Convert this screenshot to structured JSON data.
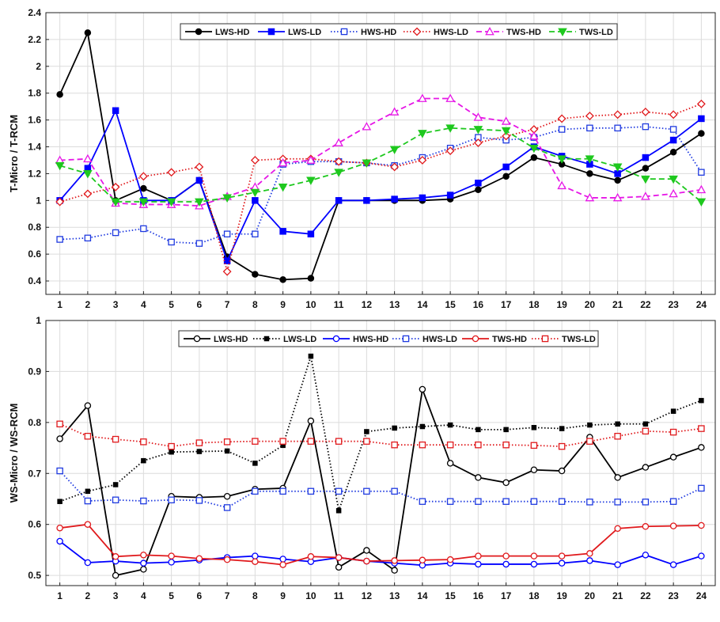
{
  "chart_data": [
    {
      "type": "line",
      "ylabel": "T-Micro / T-RCM",
      "xlabel": "",
      "title": "",
      "ylim": [
        0.3,
        2.4
      ],
      "yticks": [
        0.4,
        0.6,
        0.8,
        1,
        1.2,
        1.4,
        1.6,
        1.8,
        2,
        2.2,
        2.4
      ],
      "ytick_labels": [
        "0.4",
        "0.6",
        "0.8",
        "1",
        "1.2",
        "1.4",
        "1.6",
        "1.8",
        "2",
        "2.2",
        "2.4"
      ],
      "x": [
        1,
        2,
        3,
        4,
        5,
        6,
        7,
        8,
        9,
        10,
        11,
        12,
        13,
        14,
        15,
        16,
        17,
        18,
        19,
        20,
        21,
        22,
        23,
        24
      ],
      "xtick_labels": [
        "1",
        "2",
        "3",
        "4",
        "5",
        "6",
        "7",
        "8",
        "9",
        "10",
        "11",
        "12",
        "13",
        "14",
        "15",
        "16",
        "17",
        "18",
        "19",
        "20",
        "21",
        "22",
        "23",
        "24"
      ],
      "grid": true,
      "legend_position": "top-center",
      "series": [
        {
          "name": "LWS-HD",
          "color": "#000000",
          "dash": "solid",
          "marker": "circle-filled",
          "values": [
            1.79,
            2.25,
            1.0,
            1.09,
            1.0,
            1.15,
            0.58,
            0.45,
            0.41,
            0.42,
            1.0,
            1.0,
            1.0,
            1.0,
            1.01,
            1.08,
            1.18,
            1.32,
            1.27,
            1.2,
            1.15,
            1.24,
            1.36,
            1.5
          ]
        },
        {
          "name": "LWS-LD",
          "color": "#0000ff",
          "dash": "solid",
          "marker": "square-filled",
          "values": [
            1.0,
            1.24,
            1.67,
            1.0,
            1.0,
            1.15,
            0.55,
            1.0,
            0.77,
            0.75,
            1.0,
            1.0,
            1.01,
            1.02,
            1.04,
            1.13,
            1.25,
            1.4,
            1.33,
            1.27,
            1.2,
            1.32,
            1.45,
            1.61
          ]
        },
        {
          "name": "HWS-HD",
          "color": "#1f3ae0",
          "dash": "dotted",
          "marker": "square-open",
          "values": [
            0.71,
            0.72,
            0.76,
            0.79,
            0.69,
            0.68,
            0.75,
            0.75,
            1.27,
            1.29,
            1.29,
            1.28,
            1.26,
            1.32,
            1.39,
            1.47,
            1.45,
            1.47,
            1.53,
            1.54,
            1.54,
            1.55,
            1.53,
            1.21
          ]
        },
        {
          "name": "HWS-LD",
          "color": "#e0191c",
          "dash": "dotted",
          "marker": "diamond-open",
          "values": [
            0.99,
            1.05,
            1.1,
            1.18,
            1.21,
            1.25,
            0.47,
            1.3,
            1.31,
            1.31,
            1.29,
            1.28,
            1.25,
            1.3,
            1.37,
            1.43,
            1.48,
            1.53,
            1.61,
            1.63,
            1.64,
            1.66,
            1.64,
            1.72
          ]
        },
        {
          "name": "TWS-HD",
          "color": "#e617e6",
          "dash": "dashed",
          "marker": "triangle-up-open",
          "values": [
            1.3,
            1.31,
            0.98,
            0.97,
            0.97,
            0.96,
            1.03,
            1.1,
            1.28,
            1.3,
            1.43,
            1.55,
            1.66,
            1.76,
            1.76,
            1.62,
            1.59,
            1.48,
            1.11,
            1.02,
            1.02,
            1.03,
            1.05,
            1.08
          ]
        },
        {
          "name": "TWS-LD",
          "color": "#1ec81e",
          "dash": "dashed",
          "marker": "triangle-down-filled",
          "values": [
            1.26,
            1.2,
            0.99,
            0.99,
            0.99,
            0.99,
            1.02,
            1.06,
            1.1,
            1.15,
            1.21,
            1.28,
            1.38,
            1.5,
            1.54,
            1.53,
            1.52,
            1.39,
            1.31,
            1.31,
            1.25,
            1.16,
            1.16,
            0.99
          ]
        }
      ]
    },
    {
      "type": "line",
      "ylabel": "WS-Micro / WS-RCM",
      "xlabel": "",
      "title": "",
      "ylim": [
        0.48,
        1.0
      ],
      "yticks": [
        0.5,
        0.6,
        0.7,
        0.8,
        0.9,
        1.0
      ],
      "ytick_labels": [
        "0.5",
        "0.6",
        "0.7",
        "0.8",
        "0.9",
        "1"
      ],
      "x": [
        1,
        2,
        3,
        4,
        5,
        6,
        7,
        8,
        9,
        10,
        11,
        12,
        13,
        14,
        15,
        16,
        17,
        18,
        19,
        20,
        21,
        22,
        23,
        24
      ],
      "xtick_labels": [
        "1",
        "2",
        "3",
        "4",
        "5",
        "6",
        "7",
        "8",
        "9",
        "10",
        "11",
        "12",
        "13",
        "14",
        "15",
        "16",
        "17",
        "18",
        "19",
        "20",
        "21",
        "22",
        "23",
        "24"
      ],
      "grid": true,
      "legend_position": "top-center",
      "series": [
        {
          "name": "LWS-HD",
          "color": "#000000",
          "dash": "solid",
          "marker": "circle-open",
          "values": [
            0.768,
            0.833,
            0.5,
            0.512,
            0.655,
            0.653,
            0.655,
            0.669,
            0.671,
            0.803,
            0.516,
            0.549,
            0.51,
            0.865,
            0.72,
            0.692,
            0.682,
            0.707,
            0.705,
            0.771,
            0.692,
            0.712,
            0.732,
            0.751
          ]
        },
        {
          "name": "LWS-LD",
          "color": "#000000",
          "dash": "dotted",
          "marker": "square-filled-small",
          "values": [
            0.645,
            0.665,
            0.678,
            0.725,
            0.742,
            0.743,
            0.744,
            0.72,
            0.755,
            0.93,
            0.627,
            0.782,
            0.789,
            0.792,
            0.795,
            0.786,
            0.786,
            0.79,
            0.788,
            0.795,
            0.797,
            0.797,
            0.822,
            0.843
          ]
        },
        {
          "name": "HWS-HD",
          "color": "#0000ff",
          "dash": "solid",
          "marker": "circle-open",
          "values": [
            0.567,
            0.525,
            0.528,
            0.524,
            0.526,
            0.53,
            0.535,
            0.538,
            0.532,
            0.527,
            0.535,
            0.528,
            0.524,
            0.52,
            0.524,
            0.522,
            0.522,
            0.522,
            0.524,
            0.529,
            0.521,
            0.54,
            0.521,
            0.538
          ]
        },
        {
          "name": "HWS-LD",
          "color": "#1f3ae0",
          "dash": "dotted",
          "marker": "square-open",
          "values": [
            0.705,
            0.646,
            0.648,
            0.646,
            0.648,
            0.647,
            0.633,
            0.665,
            0.665,
            0.665,
            0.665,
            0.665,
            0.665,
            0.645,
            0.645,
            0.645,
            0.645,
            0.645,
            0.645,
            0.644,
            0.644,
            0.644,
            0.645,
            0.671
          ]
        },
        {
          "name": "TWS-HD",
          "color": "#e0191c",
          "dash": "solid",
          "marker": "circle-open",
          "values": [
            0.593,
            0.6,
            0.537,
            0.54,
            0.538,
            0.533,
            0.531,
            0.527,
            0.521,
            0.537,
            0.535,
            0.528,
            0.529,
            0.53,
            0.531,
            0.538,
            0.538,
            0.538,
            0.538,
            0.543,
            0.592,
            0.596,
            0.597,
            0.598
          ]
        },
        {
          "name": "TWS-LD",
          "color": "#e0191c",
          "dash": "dotted",
          "marker": "square-open",
          "values": [
            0.797,
            0.773,
            0.767,
            0.762,
            0.753,
            0.76,
            0.762,
            0.763,
            0.763,
            0.763,
            0.763,
            0.763,
            0.756,
            0.756,
            0.756,
            0.756,
            0.756,
            0.755,
            0.753,
            0.763,
            0.773,
            0.783,
            0.781,
            0.788
          ]
        }
      ]
    }
  ]
}
